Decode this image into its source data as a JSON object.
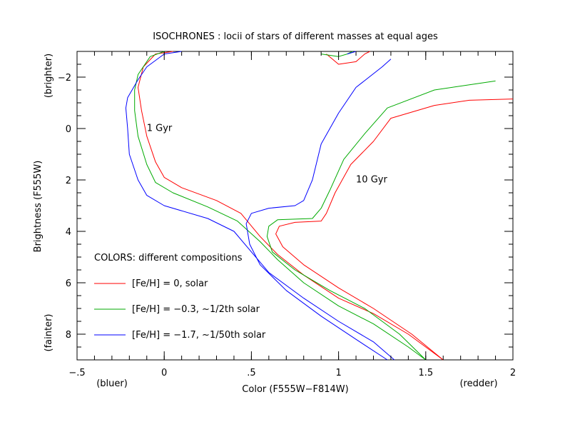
{
  "chart_data": {
    "type": "line",
    "title": "ISOCHRONES : locii of stars of different masses at equal ages",
    "xlabel": "Color (F555W−F814W)",
    "ylabel": "Brightness (F555W)",
    "xlim": [
      -0.5,
      2.0
    ],
    "ylim": [
      9.0,
      -3.0
    ],
    "grid": false,
    "x_ticks": [
      -0.5,
      0,
      0.5,
      1,
      1.5,
      2
    ],
    "x_tick_labels": [
      "−.5",
      "0",
      ".5",
      "1",
      "1.5",
      "2"
    ],
    "y_ticks": [
      -2,
      0,
      2,
      4,
      6,
      8
    ],
    "y_tick_labels": [
      "−2",
      "0",
      "2",
      "4",
      "6",
      "8"
    ],
    "x_side_labels": {
      "left": "(bluer)",
      "right": "(redder)"
    },
    "y_side_labels": {
      "top": "(brighter)",
      "bottom": "(fainter)"
    },
    "annotations": [
      {
        "text": "1 Gyr",
        "x": -0.1,
        "y": 0.1
      },
      {
        "text": "10 Gyr",
        "x": 1.1,
        "y": 2.1
      }
    ],
    "legend": {
      "title": "COLORS: different compositions",
      "placement": "bottom-left",
      "entries": [
        {
          "label": "[Fe/H] = 0, solar",
          "color": "#ff0000"
        },
        {
          "label": "[Fe/H] = −0.3, ~1/2th solar",
          "color": "#00aa00"
        },
        {
          "label": "[Fe/H] = −1.7, ~1/50th solar",
          "color": "#0000ff"
        }
      ]
    },
    "series": [
      {
        "name": "[Fe/H] = 0, 1 Gyr",
        "color": "#ff0000",
        "points": [
          [
            1.6,
            9.0
          ],
          [
            1.4,
            8.0
          ],
          [
            1.2,
            7.2
          ],
          [
            1.0,
            6.6
          ],
          [
            0.8,
            5.7
          ],
          [
            0.65,
            4.9
          ],
          [
            0.55,
            4.2
          ],
          [
            0.44,
            3.3
          ],
          [
            0.3,
            2.8
          ],
          [
            0.1,
            2.3
          ],
          [
            0.0,
            1.9
          ],
          [
            -0.05,
            1.3
          ],
          [
            -0.1,
            0.3
          ],
          [
            -0.13,
            -0.7
          ],
          [
            -0.15,
            -1.6
          ],
          [
            -0.12,
            -2.4
          ],
          [
            -0.05,
            -2.9
          ],
          [
            0.05,
            -3.0
          ]
        ]
      },
      {
        "name": "[Fe/H] = 0, 10 Gyr",
        "color": "#ff0000",
        "points": [
          [
            1.6,
            9.0
          ],
          [
            1.42,
            8.0
          ],
          [
            1.2,
            7.0
          ],
          [
            1.0,
            6.2
          ],
          [
            0.8,
            5.3
          ],
          [
            0.68,
            4.6
          ],
          [
            0.64,
            4.1
          ],
          [
            0.66,
            3.8
          ],
          [
            0.75,
            3.65
          ],
          [
            0.9,
            3.6
          ],
          [
            0.93,
            3.3
          ],
          [
            0.98,
            2.5
          ],
          [
            1.07,
            1.4
          ],
          [
            1.2,
            0.5
          ],
          [
            1.3,
            -0.4
          ],
          [
            1.55,
            -0.9
          ],
          [
            1.75,
            -1.1
          ],
          [
            2.0,
            -1.15
          ]
        ]
      },
      {
        "name": "[Fe/H] = 0, 10 Gyr upper",
        "color": "#ff0000",
        "points": [
          [
            0.93,
            -2.9
          ],
          [
            1.0,
            -2.5
          ],
          [
            1.1,
            -2.6
          ],
          [
            1.15,
            -2.9
          ],
          [
            1.18,
            -3.0
          ]
        ]
      },
      {
        "name": "[Fe/H] = -0.3, 1 Gyr",
        "color": "#00aa00",
        "points": [
          [
            1.5,
            9.0
          ],
          [
            1.4,
            8.5
          ],
          [
            1.2,
            7.6
          ],
          [
            1.0,
            6.9
          ],
          [
            0.8,
            6.0
          ],
          [
            0.65,
            5.1
          ],
          [
            0.55,
            4.4
          ],
          [
            0.42,
            3.6
          ],
          [
            0.25,
            3.05
          ],
          [
            0.05,
            2.5
          ],
          [
            -0.05,
            2.1
          ],
          [
            -0.1,
            1.4
          ],
          [
            -0.15,
            0.3
          ],
          [
            -0.17,
            -0.7
          ],
          [
            -0.17,
            -1.5
          ],
          [
            -0.15,
            -2.1
          ],
          [
            -0.08,
            -2.8
          ],
          [
            0.0,
            -3.0
          ]
        ]
      },
      {
        "name": "[Fe/H] = -0.3, 10 Gyr",
        "color": "#00aa00",
        "points": [
          [
            1.5,
            9.0
          ],
          [
            1.35,
            8.0
          ],
          [
            1.15,
            7.0
          ],
          [
            0.95,
            6.3
          ],
          [
            0.75,
            5.5
          ],
          [
            0.62,
            4.8
          ],
          [
            0.59,
            4.2
          ],
          [
            0.6,
            3.8
          ],
          [
            0.65,
            3.55
          ],
          [
            0.85,
            3.5
          ],
          [
            0.9,
            3.1
          ],
          [
            0.95,
            2.4
          ],
          [
            1.03,
            1.2
          ],
          [
            1.15,
            0.2
          ],
          [
            1.28,
            -0.8
          ],
          [
            1.55,
            -1.5
          ],
          [
            1.9,
            -1.85
          ]
        ]
      },
      {
        "name": "[Fe/H] = -0.3, 10 Gyr upper",
        "color": "#00aa00",
        "points": [
          [
            0.9,
            -2.9
          ],
          [
            1.0,
            -2.8
          ],
          [
            1.05,
            -2.9
          ],
          [
            1.08,
            -3.0
          ]
        ]
      },
      {
        "name": "[Fe/H] = -1.7, 1 Gyr",
        "color": "#0000ff",
        "points": [
          [
            1.32,
            9.0
          ],
          [
            1.2,
            8.3
          ],
          [
            1.0,
            7.5
          ],
          [
            0.8,
            6.6
          ],
          [
            0.6,
            5.6
          ],
          [
            0.5,
            4.8
          ],
          [
            0.4,
            4.0
          ],
          [
            0.25,
            3.5
          ],
          [
            0.0,
            3.0
          ],
          [
            -0.1,
            2.6
          ],
          [
            -0.15,
            2.0
          ],
          [
            -0.2,
            1.0
          ],
          [
            -0.21,
            0.0
          ],
          [
            -0.22,
            -0.8
          ],
          [
            -0.21,
            -1.2
          ],
          [
            -0.15,
            -1.9
          ],
          [
            -0.1,
            -2.4
          ],
          [
            0.0,
            -2.9
          ],
          [
            0.1,
            -3.0
          ]
        ]
      },
      {
        "name": "[Fe/H] = -1.7, 10 Gyr",
        "color": "#0000ff",
        "points": [
          [
            1.28,
            9.0
          ],
          [
            1.1,
            8.2
          ],
          [
            0.9,
            7.3
          ],
          [
            0.7,
            6.3
          ],
          [
            0.55,
            5.3
          ],
          [
            0.49,
            4.5
          ],
          [
            0.47,
            3.7
          ],
          [
            0.5,
            3.3
          ],
          [
            0.6,
            3.1
          ],
          [
            0.75,
            3.0
          ],
          [
            0.8,
            2.8
          ],
          [
            0.85,
            2.0
          ],
          [
            0.9,
            0.6
          ],
          [
            1.0,
            -0.6
          ],
          [
            1.1,
            -1.6
          ],
          [
            1.25,
            -2.4
          ],
          [
            1.3,
            -2.7
          ]
        ]
      },
      {
        "name": "[Fe/H] = -1.7, 10 Gyr upper",
        "color": "#0000ff",
        "points": [
          [
            1.05,
            -2.9
          ],
          [
            1.1,
            -3.0
          ]
        ]
      }
    ]
  }
}
